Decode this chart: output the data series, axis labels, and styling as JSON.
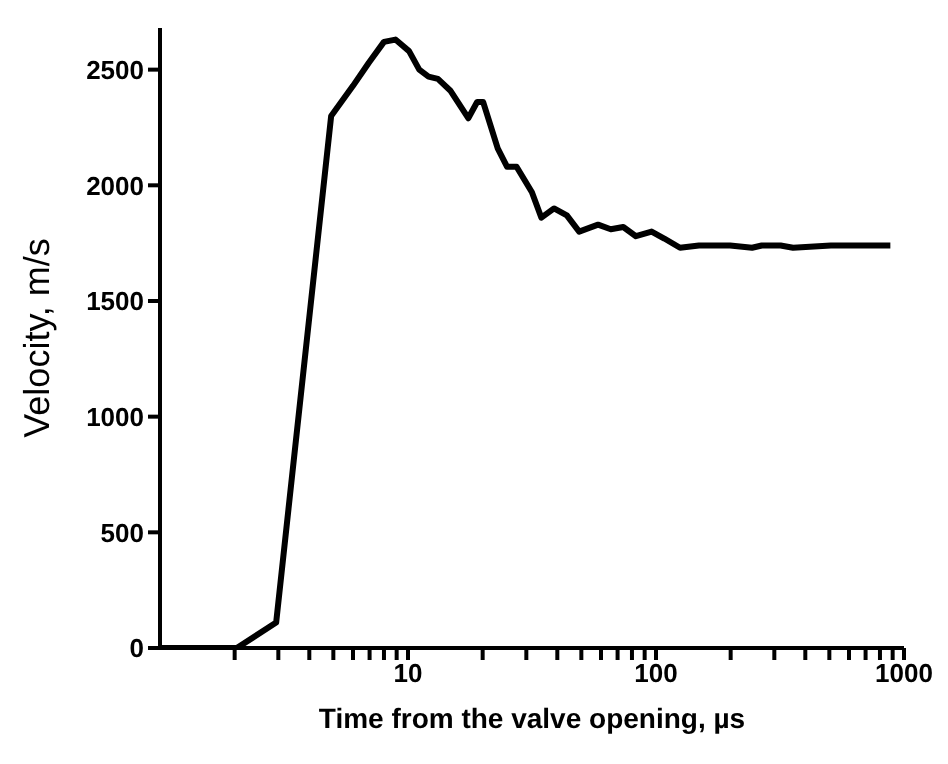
{
  "chart_data": {
    "type": "line",
    "xlabel": "Time from the valve opening, µs",
    "ylabel": "Velocity, m/s",
    "log": "x",
    "marker": "none",
    "line_style": "solid",
    "xlim": [
      1,
      1000
    ],
    "xticks": [
      {
        "value": 2,
        "label": null
      },
      {
        "value": 3,
        "label": null
      },
      {
        "value": 4,
        "label": null
      },
      {
        "value": 5,
        "label": null
      },
      {
        "value": 6,
        "label": null
      },
      {
        "value": 7,
        "label": null
      },
      {
        "value": 8,
        "label": null
      },
      {
        "value": 9,
        "label": null
      },
      10,
      {
        "value": 20,
        "label": null
      },
      {
        "value": 30,
        "label": null
      },
      {
        "value": 40,
        "label": null
      },
      {
        "value": 50,
        "label": null
      },
      {
        "value": 60,
        "label": null
      },
      {
        "value": 70,
        "label": null
      },
      {
        "value": 80,
        "label": null
      },
      {
        "value": 90,
        "label": null
      },
      100,
      {
        "value": 200,
        "label": null
      },
      {
        "value": 300,
        "label": null
      },
      {
        "value": 400,
        "label": null
      },
      {
        "value": 500,
        "label": null
      },
      {
        "value": 600,
        "label": null
      },
      {
        "value": 700,
        "label": null
      },
      {
        "value": 800,
        "label": null
      },
      {
        "value": 900,
        "label": null
      },
      1000
    ],
    "ylim": [
      0,
      2680
    ],
    "yticks": [
      0,
      500,
      1000,
      1500,
      2000,
      2500
    ],
    "x": [
      1,
      2.04,
      2.94,
      4.9,
      6.0,
      6.95,
      8.0,
      8.9,
      10.1,
      11.1,
      12.1,
      13.2,
      14.8,
      17.5,
      19.0,
      20.1,
      23.0,
      25.1,
      27.4,
      31.6,
      34.5,
      38.8,
      43.7,
      49,
      58.4,
      65.7,
      73.8,
      83,
      96,
      108,
      125,
      149,
      199,
      244,
      267,
      318,
      357,
      507,
      881
    ],
    "series": [
      {
        "color": "#000000",
        "values": [
          0,
          0,
          110,
          2300,
          2430,
          2530,
          2620,
          2630,
          2580,
          2500,
          2470,
          2460,
          2410,
          2290,
          2360,
          2360,
          2160,
          2080,
          2080,
          1970,
          1860,
          1900,
          1870,
          1800,
          1830,
          1810,
          1820,
          1780,
          1800,
          1770,
          1730,
          1740,
          1740,
          1730,
          1740,
          1740,
          1730,
          1740,
          1740
        ]
      }
    ]
  }
}
